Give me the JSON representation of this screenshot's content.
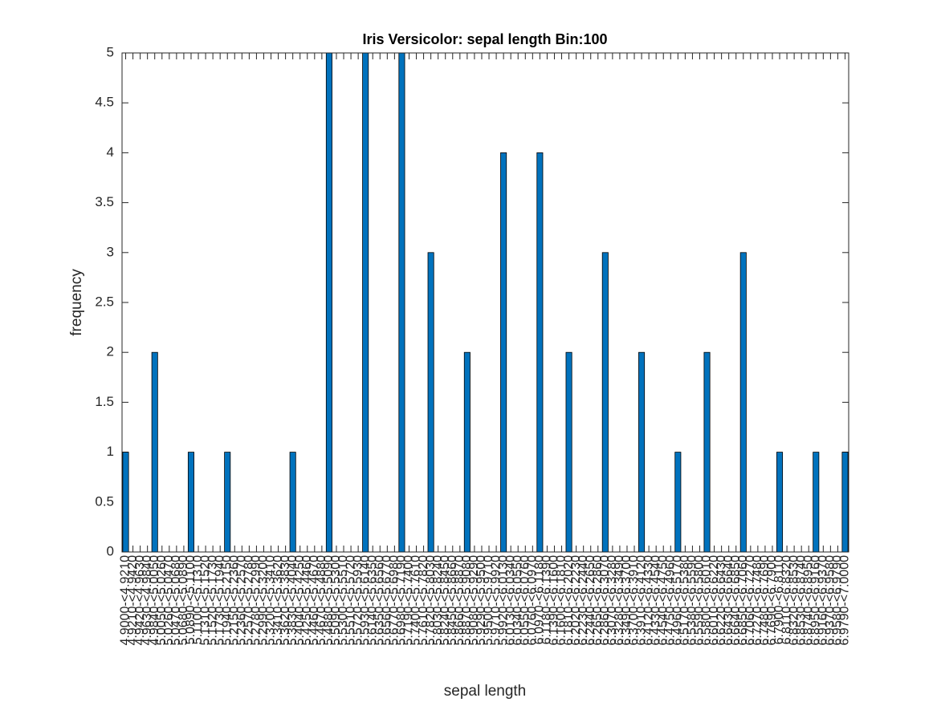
{
  "chart_data": {
    "type": "bar",
    "title": "Iris Versicolor: sepal length Bin:100",
    "xlabel": "sepal length",
    "ylabel": "frequency",
    "categories": [
      "4.9000-<4.9210",
      "4.9210-<4.9420",
      "4.9420-<4.9630",
      "4.9630-<4.9840",
      "4.9840-<5.0050",
      "5.0050-<5.0260",
      "5.0260-<5.0470",
      "5.0470-<5.0680",
      "5.0680-<5.0890",
      "5.0890-<5.1100",
      "5.1100-<5.1310",
      "5.1310-<5.1520",
      "5.1520-<5.1730",
      "5.1730-<5.1940",
      "5.1940-<5.2150",
      "5.2150-<5.2360",
      "5.2360-<5.2570",
      "5.2570-<5.2780",
      "5.2780-<5.2990",
      "5.2990-<5.3200",
      "5.3200-<5.3410",
      "5.3410-<5.3620",
      "5.3620-<5.3830",
      "5.3830-<5.4040",
      "5.4040-<5.4250",
      "5.4250-<5.4460",
      "5.4460-<5.4670",
      "5.4670-<5.4880",
      "5.4880-<5.5090",
      "5.5090-<5.5300",
      "5.5300-<5.5510",
      "5.5510-<5.5720",
      "5.5720-<5.5930",
      "5.5930-<5.6140",
      "5.6140-<5.6350",
      "5.6350-<5.6560",
      "5.6560-<5.6770",
      "5.6770-<5.6980",
      "5.6980-<5.7190",
      "5.7190-<5.7400",
      "5.7400-<5.7610",
      "5.7610-<5.7820",
      "5.7820-<5.8030",
      "5.8030-<5.8240",
      "5.8240-<5.8450",
      "5.8450-<5.8660",
      "5.8660-<5.8870",
      "5.8870-<5.9080",
      "5.9080-<5.9290",
      "5.9290-<5.9500",
      "5.9500-<5.9710",
      "5.9710-<5.9920",
      "5.9920-<6.0130",
      "6.0130-<6.0340",
      "6.0340-<6.0550",
      "6.0550-<6.0760",
      "6.0760-<6.0970",
      "6.0970-<6.1180",
      "6.1180-<6.1390",
      "6.1390-<6.1600",
      "6.1600-<6.1810",
      "6.1810-<6.2020",
      "6.2020-<6.2230",
      "6.2230-<6.2440",
      "6.2440-<6.2650",
      "6.2650-<6.2860",
      "6.2860-<6.3070",
      "6.3070-<6.3280",
      "6.3280-<6.3490",
      "6.3490-<6.3700",
      "6.3700-<6.3910",
      "6.3910-<6.4120",
      "6.4120-<6.4330",
      "6.4330-<6.4540",
      "6.4540-<6.4750",
      "6.4750-<6.4960",
      "6.4960-<6.5170",
      "6.5170-<6.5380",
      "6.5380-<6.5590",
      "6.5590-<6.5800",
      "6.5800-<6.6010",
      "6.6010-<6.6220",
      "6.6220-<6.6430",
      "6.6430-<6.6640",
      "6.6640-<6.6850",
      "6.6850-<6.7060",
      "6.7060-<6.7270",
      "6.7270-<6.7480",
      "6.7480-<6.7690",
      "6.7690-<6.7900",
      "6.7900-<6.8110",
      "6.8110-<6.8320",
      "6.8320-<6.8530",
      "6.8530-<6.8740",
      "6.8740-<6.8950",
      "6.8950-<6.9160",
      "6.9160-<6.9370",
      "6.9370-<6.9580",
      "6.9580-<6.9790",
      "6.9790-<7.0000"
    ],
    "values": [
      1,
      0,
      0,
      0,
      2,
      0,
      0,
      0,
      0,
      1,
      0,
      0,
      0,
      0,
      1,
      0,
      0,
      0,
      0,
      0,
      0,
      0,
      0,
      1,
      0,
      0,
      0,
      0,
      5,
      0,
      0,
      0,
      0,
      5,
      0,
      0,
      0,
      0,
      5,
      0,
      0,
      0,
      3,
      0,
      0,
      0,
      0,
      2,
      0,
      0,
      0,
      0,
      4,
      0,
      0,
      0,
      0,
      4,
      0,
      0,
      0,
      2,
      0,
      0,
      0,
      0,
      3,
      0,
      0,
      0,
      0,
      2,
      0,
      0,
      0,
      0,
      1,
      0,
      0,
      0,
      2,
      0,
      0,
      0,
      0,
      3,
      0,
      0,
      0,
      0,
      1,
      0,
      0,
      0,
      0,
      1,
      0,
      0,
      0,
      1
    ],
    "color": "#0072bd",
    "ylim": [
      0,
      5
    ],
    "yticks": [
      0,
      0.5,
      1,
      1.5,
      2,
      2.5,
      3,
      3.5,
      4,
      4.5,
      5
    ],
    "grid": false
  }
}
